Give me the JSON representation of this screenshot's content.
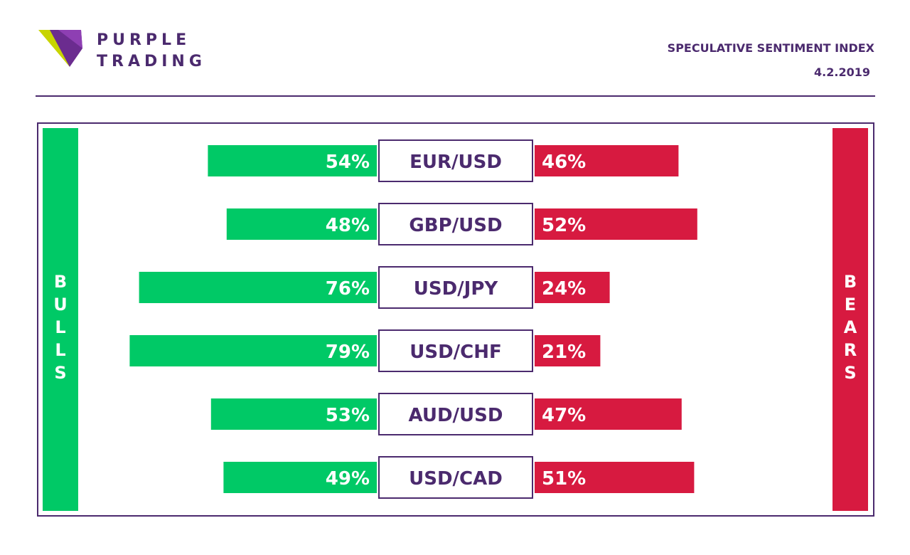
{
  "brand": {
    "line1": "PURPLE",
    "line2": "TRADING"
  },
  "header": {
    "title": "SPECULATIVE SENTIMENT INDEX",
    "date": "4.2.2019"
  },
  "labels": {
    "bulls": "BULLS",
    "bears": "BEARS"
  },
  "colors": {
    "purple": "#4b2a6e",
    "bull": "#00c966",
    "bear": "#d71a40"
  },
  "chart_data": {
    "type": "bar",
    "categories": [
      "EUR/USD",
      "GBP/USD",
      "USD/JPY",
      "USD/CHF",
      "AUD/USD",
      "USD/CAD"
    ],
    "series": [
      {
        "name": "BULLS",
        "values": [
          54,
          48,
          76,
          79,
          53,
          49
        ]
      },
      {
        "name": "BEARS",
        "values": [
          46,
          52,
          24,
          21,
          47,
          51
        ]
      }
    ],
    "value_suffix": "%",
    "xlim": [
      0,
      100
    ]
  }
}
